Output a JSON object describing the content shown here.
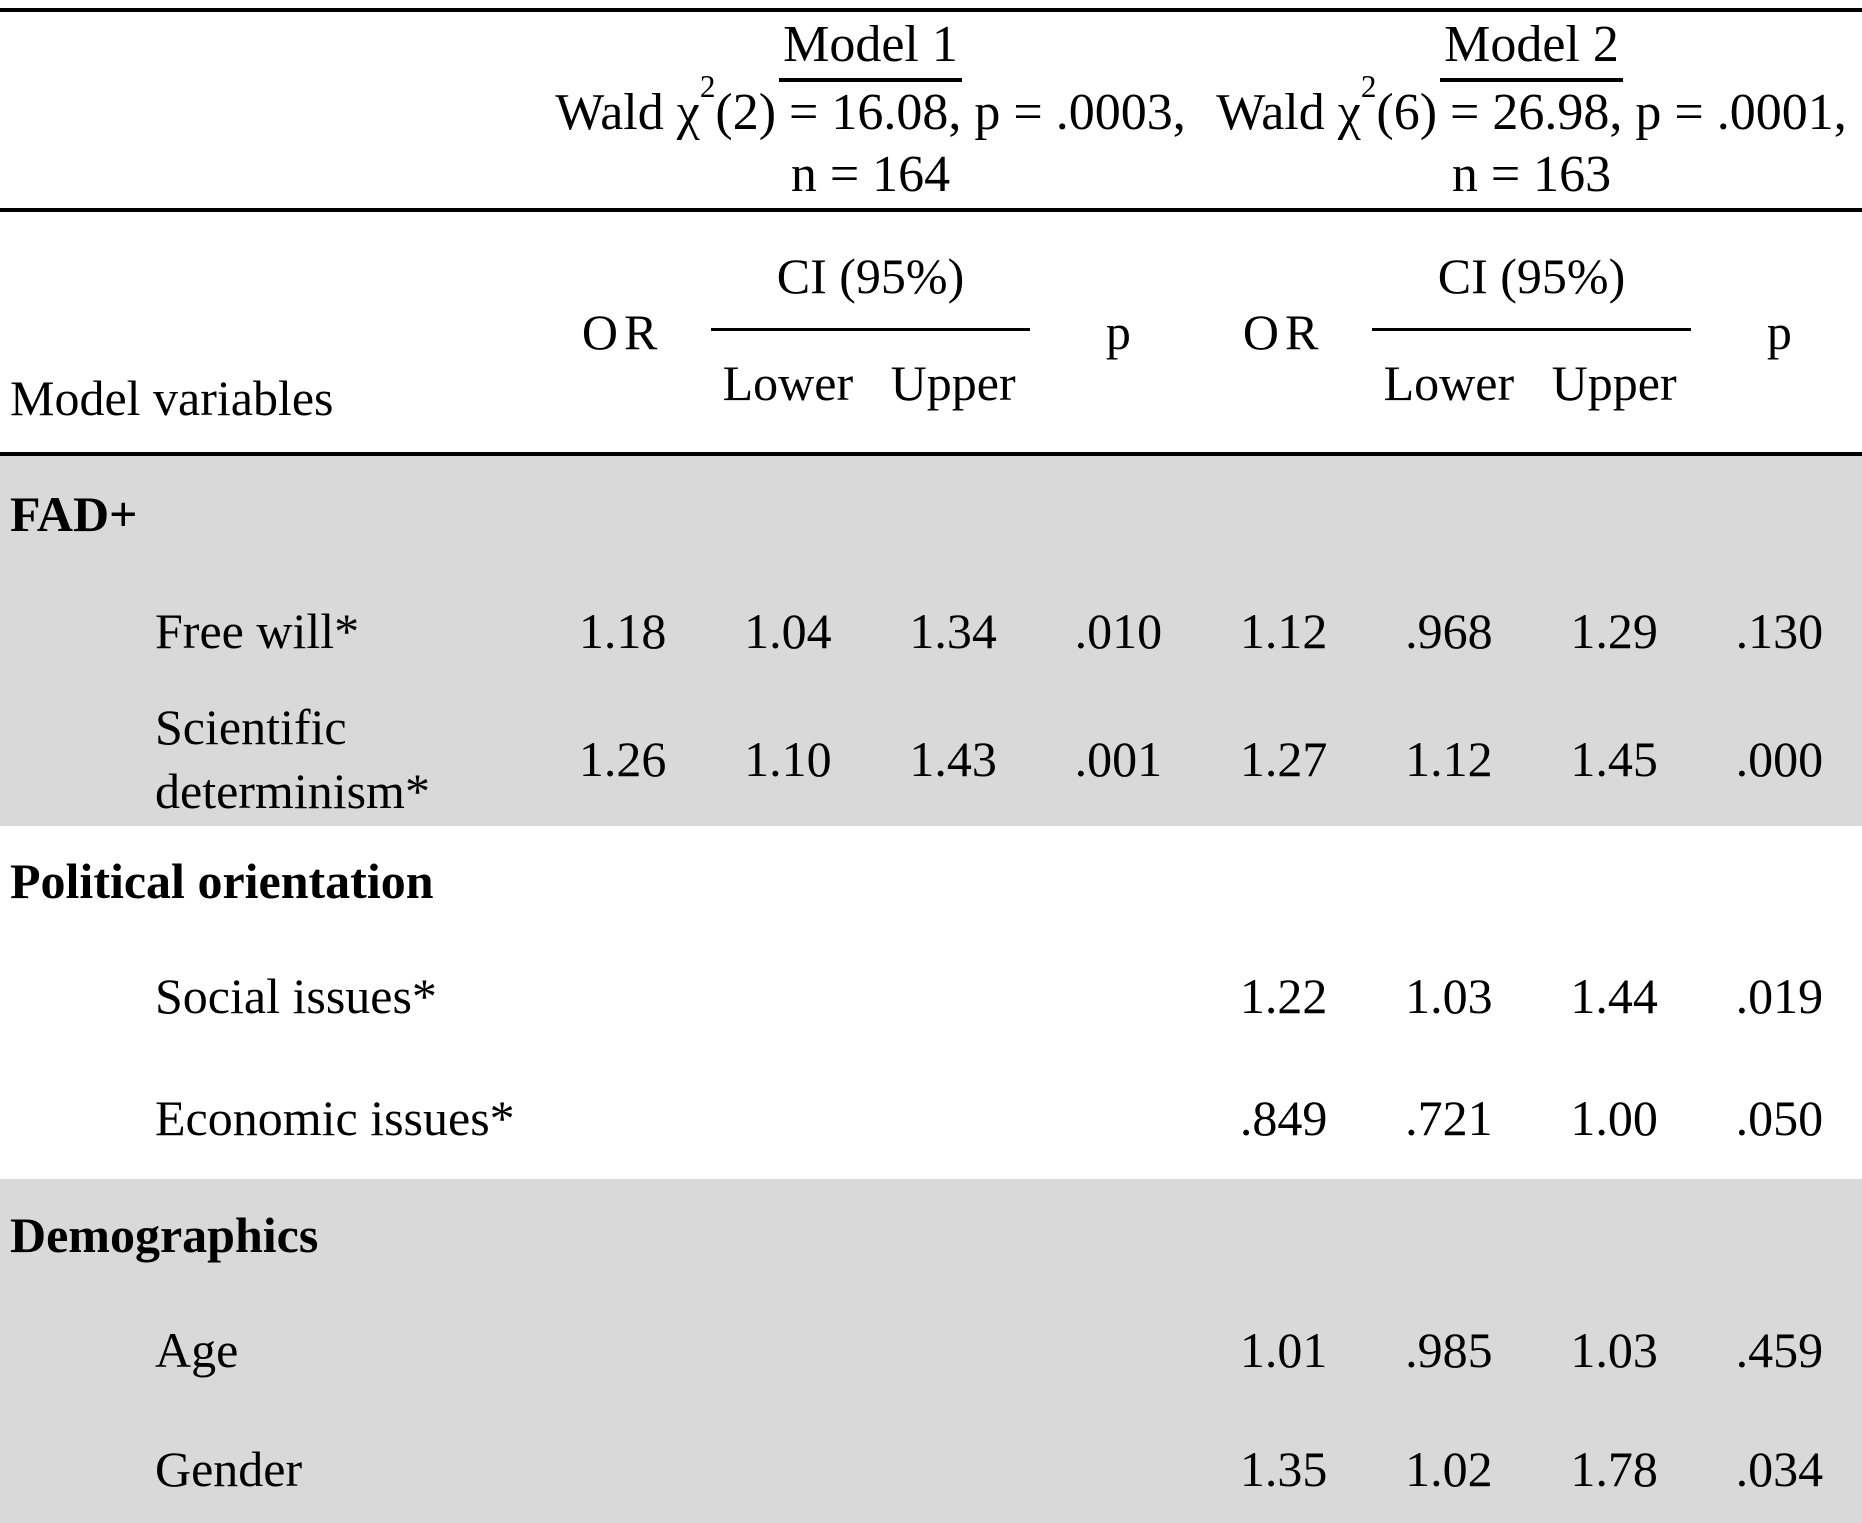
{
  "header": {
    "model_variables": "Model variables",
    "or": "OR",
    "ci": "CI (95%)",
    "lower": "Lower",
    "upper": "Upper",
    "p": "p",
    "models": [
      {
        "title": "Model 1",
        "wald_pre": "Wald χ",
        "wald_sup": "2",
        "wald_post": "(2) = 16.08, p = .0003,",
        "n": "n = 164"
      },
      {
        "title": "Model 2",
        "wald_pre": "Wald χ",
        "wald_sup": "2",
        "wald_post": "(6) = 26.98, p = .0001,",
        "n": "n = 163"
      }
    ]
  },
  "rows": [
    {
      "label": "FAD+"
    },
    {
      "label": "Free will*",
      "m1": {
        "or": "1.18",
        "lower": "1.04",
        "upper": "1.34",
        "p": ".010"
      },
      "m2": {
        "or": "1.12",
        "lower": ".968",
        "upper": "1.29",
        "p": ".130"
      }
    },
    {
      "label": "Scientific determinism*",
      "m1": {
        "or": "1.26",
        "lower": "1.10",
        "upper": "1.43",
        "p": ".001"
      },
      "m2": {
        "or": "1.27",
        "lower": "1.12",
        "upper": "1.45",
        "p": ".000"
      }
    },
    {
      "label": "Political orientation"
    },
    {
      "label": "Social issues*",
      "m2": {
        "or": "1.22",
        "lower": "1.03",
        "upper": "1.44",
        "p": ".019"
      }
    },
    {
      "label": "Economic issues*",
      "m2": {
        "or": ".849",
        "lower": ".721",
        "upper": "1.00",
        "p": ".050"
      }
    },
    {
      "label": "Demographics"
    },
    {
      "label": "Age",
      "m2": {
        "or": "1.01",
        "lower": ".985",
        "upper": "1.03",
        "p": ".459"
      }
    },
    {
      "label": "Gender",
      "m2": {
        "or": "1.35",
        "lower": "1.02",
        "upper": "1.78",
        "p": ".034"
      }
    }
  ],
  "colors": {
    "section_shade": "#d9d9d9",
    "rule": "#000000",
    "text": "#000000"
  }
}
